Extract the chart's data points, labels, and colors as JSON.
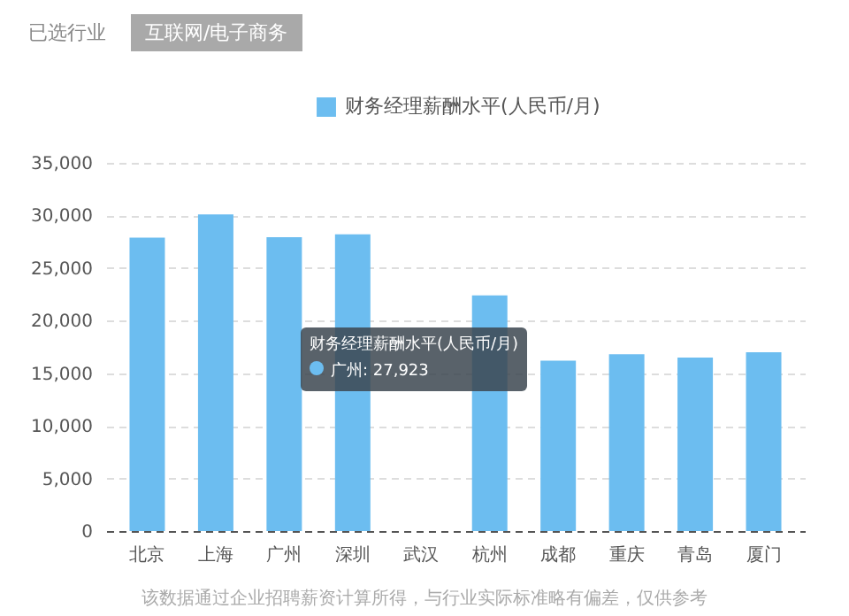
{
  "chart_data": {
    "type": "bar",
    "categories": [
      "北京",
      "上海",
      "广州",
      "深圳",
      "武汉",
      "杭州",
      "成都",
      "重庆",
      "青岛",
      "厦门"
    ],
    "series": [
      {
        "name": "财务经理薪酬水平(人民币/月)",
        "color": "#6cbdf0",
        "values": [
          27900,
          30100,
          27923,
          28200,
          null,
          22400,
          16200,
          16800,
          16500,
          17000
        ]
      }
    ],
    "ylim": [
      0,
      35000
    ],
    "yticks": [
      {
        "value": 0,
        "label": "0"
      },
      {
        "value": 5000,
        "label": "5,000"
      },
      {
        "value": 10000,
        "label": "10,000"
      },
      {
        "value": 15000,
        "label": "15,000"
      },
      {
        "value": 20000,
        "label": "20,000"
      },
      {
        "value": 25000,
        "label": "25,000"
      },
      {
        "value": 30000,
        "label": "30,000"
      },
      {
        "value": 35000,
        "label": "35,000"
      }
    ],
    "grid": "y",
    "legend": "top",
    "annotations": [
      "已选行业",
      "互联网/电子商务",
      "广州: 27,923",
      "该数据通过企业招聘薪资计算所得，与行业实际标准略有偏差，仅供参考"
    ]
  }
}
